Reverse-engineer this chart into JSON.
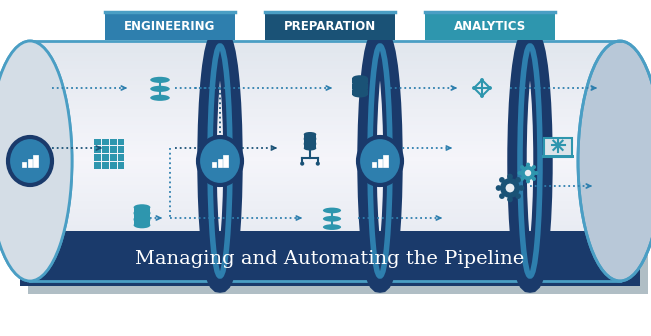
{
  "title": "Managing and Automating the Pipeline",
  "title_fontsize": 18,
  "title_color": "#FFFFFF",
  "title_bg_color": "#1a3a6b",
  "sections": [
    "ENGINEERING",
    "PREPARATION",
    "ANALYTICS"
  ],
  "section_colors": [
    "#2e7fae",
    "#1a5276",
    "#2e96ae"
  ],
  "section_bg": "#2980b9",
  "cylinder_gradient_light": "#e8edf2",
  "cylinder_gradient_dark": "#c5cdd8",
  "cylinder_border": "#2e7fae",
  "dark_ring_color": "#1a3a6b",
  "arrow_color": "#2e7fae",
  "icon_color": "#2e96ae",
  "icon_dark_color": "#1a5276",
  "badge_bg": "#2e7fae",
  "badge_border": "#1a3a6b",
  "bg_color": "#FFFFFF"
}
